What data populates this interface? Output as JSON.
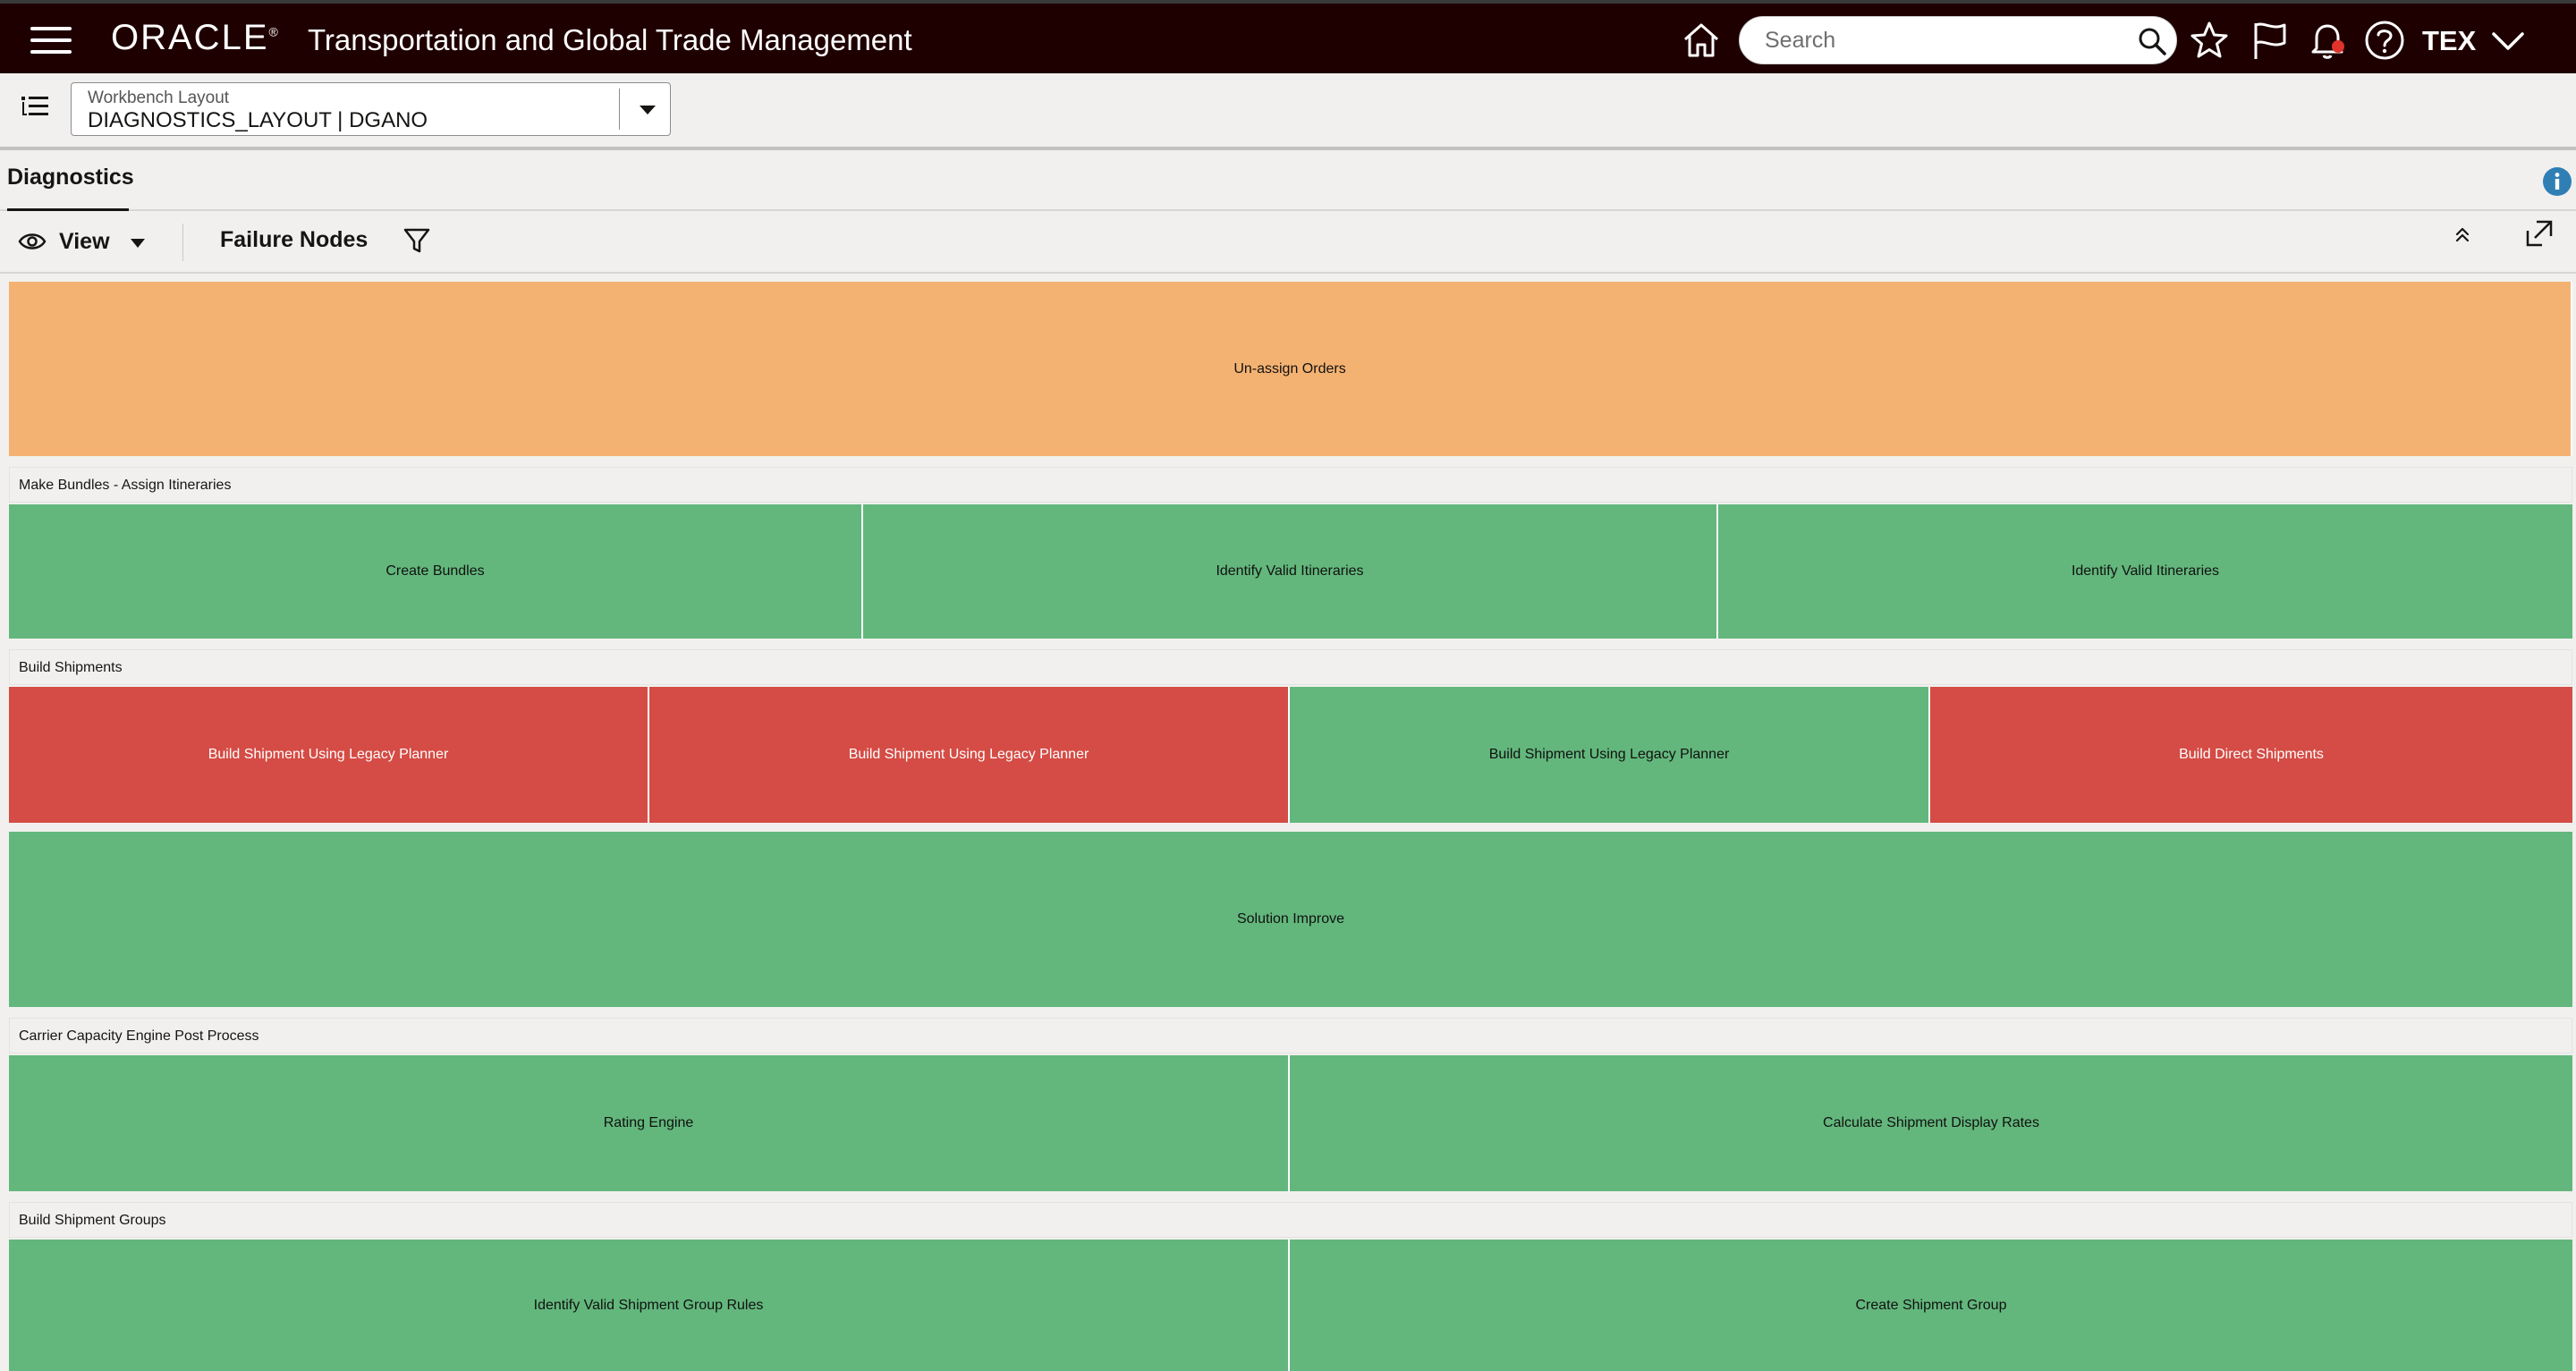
{
  "header": {
    "logo": "ORACLE",
    "logo_mark": "®",
    "app_title": "Transportation and Global Trade Management",
    "search_placeholder": "Search",
    "user": "TEX",
    "icons": [
      "menu-icon",
      "home-icon",
      "search-icon",
      "star-icon",
      "flag-icon",
      "bell-icon",
      "help-icon",
      "chevron-down-icon"
    ],
    "notification_dot_color": "#e0332b"
  },
  "layout_selector": {
    "label": "Workbench Layout",
    "value": "DIAGNOSTICS_LAYOUT | DGANO"
  },
  "tab": {
    "title": "Diagnostics"
  },
  "toolbar": {
    "view_label": "View",
    "failure_nodes_label": "Failure Nodes"
  },
  "colors": {
    "brand_bar": "#1f0000",
    "success": "#63b77c",
    "warning": "#f4b272",
    "failure": "#d44c45",
    "info": "#2f7fb5"
  },
  "treemap": {
    "top_node": {
      "label": "Un-assign Orders",
      "status": "warning"
    },
    "groups": [
      {
        "title": "Make Bundles - Assign Itineraries",
        "nodes": [
          {
            "label": "Create Bundles",
            "status": "success"
          },
          {
            "label": "Identify Valid Itineraries",
            "status": "success"
          },
          {
            "label": "Identify Valid Itineraries",
            "status": "success"
          }
        ]
      },
      {
        "title": "Build Shipments",
        "nodes": [
          {
            "label": "Build Shipment Using Legacy Planner",
            "status": "failure"
          },
          {
            "label": "Build Shipment Using Legacy Planner",
            "status": "failure"
          },
          {
            "label": "Build Shipment Using Legacy Planner",
            "status": "success"
          },
          {
            "label": "Build Direct Shipments",
            "status": "failure"
          }
        ],
        "footer_node": {
          "label": "Solution Improve",
          "status": "success"
        }
      },
      {
        "title": "Carrier Capacity Engine Post Process",
        "nodes": [
          {
            "label": "Rating Engine",
            "status": "success"
          },
          {
            "label": "Calculate Shipment Display Rates",
            "status": "success"
          }
        ]
      },
      {
        "title": "Build Shipment Groups",
        "nodes": [
          {
            "label": "Identify Valid Shipment Group Rules",
            "status": "success"
          },
          {
            "label": "Create Shipment Group",
            "status": "success"
          }
        ]
      }
    ]
  }
}
